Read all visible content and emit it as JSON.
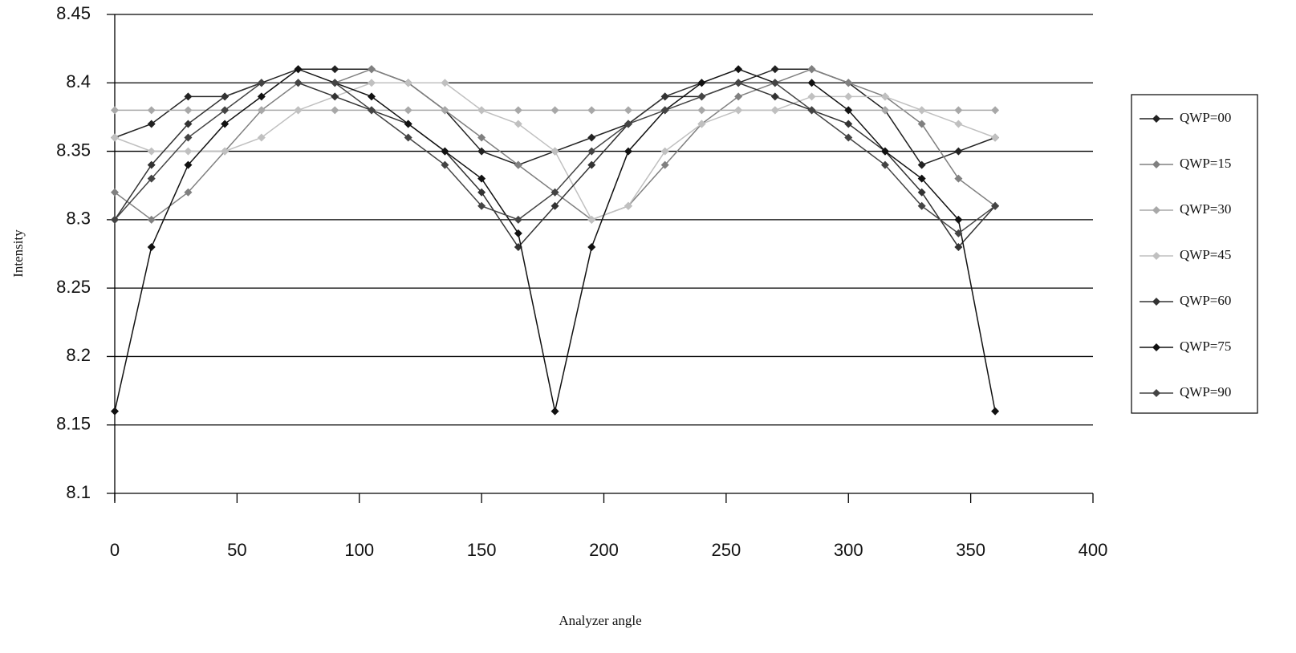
{
  "chart_data": {
    "type": "line",
    "x_label": "Analyzer angle",
    "y_label": "Intensity",
    "x": [
      0,
      15,
      30,
      45,
      60,
      75,
      90,
      105,
      120,
      135,
      150,
      165,
      180,
      195,
      210,
      225,
      240,
      255,
      270,
      285,
      300,
      315,
      330,
      345,
      360
    ],
    "xlim": [
      0,
      400
    ],
    "xticks": [
      0,
      50,
      100,
      150,
      200,
      250,
      300,
      350,
      400
    ],
    "ylim": [
      8.1,
      8.45
    ],
    "yticks": [
      8.1,
      8.15,
      8.2,
      8.25,
      8.3,
      8.35,
      8.4,
      8.45
    ],
    "grid": true,
    "legend": "right",
    "series": [
      {
        "name": "QWP=00",
        "color": "#222222",
        "values": [
          8.36,
          8.37,
          8.39,
          8.39,
          8.4,
          8.41,
          8.41,
          8.41,
          8.4,
          8.38,
          8.35,
          8.34,
          8.35,
          8.36,
          8.37,
          8.39,
          8.39,
          8.4,
          8.41,
          8.41,
          8.4,
          8.38,
          8.34,
          8.35,
          8.36
        ]
      },
      {
        "name": "QWP=15",
        "color": "#808080",
        "values": [
          8.32,
          8.3,
          8.32,
          8.35,
          8.38,
          8.4,
          8.4,
          8.41,
          8.4,
          8.38,
          8.36,
          8.34,
          8.32,
          8.3,
          8.31,
          8.34,
          8.37,
          8.39,
          8.4,
          8.41,
          8.4,
          8.39,
          8.37,
          8.33,
          8.31
        ]
      },
      {
        "name": "QWP=30",
        "color": "#a8a8a8",
        "values": [
          8.38,
          8.38,
          8.38,
          8.38,
          8.38,
          8.38,
          8.38,
          8.38,
          8.38,
          8.38,
          8.38,
          8.38,
          8.38,
          8.38,
          8.38,
          8.38,
          8.38,
          8.38,
          8.38,
          8.38,
          8.38,
          8.38,
          8.38,
          8.38,
          8.38
        ]
      },
      {
        "name": "QWP=45",
        "color": "#c0c0c0",
        "values": [
          8.36,
          8.35,
          8.35,
          8.35,
          8.36,
          8.38,
          8.39,
          8.4,
          8.4,
          8.4,
          8.38,
          8.37,
          8.35,
          8.3,
          8.31,
          8.35,
          8.37,
          8.38,
          8.38,
          8.39,
          8.39,
          8.39,
          8.38,
          8.37,
          8.36
        ]
      },
      {
        "name": "QWP=60",
        "color": "#333333",
        "values": [
          8.3,
          8.34,
          8.37,
          8.39,
          8.4,
          8.4,
          8.39,
          8.38,
          8.37,
          8.35,
          8.32,
          8.28,
          8.31,
          8.34,
          8.37,
          8.39,
          8.4,
          8.4,
          8.39,
          8.38,
          8.37,
          8.35,
          8.32,
          8.28,
          8.31
        ]
      },
      {
        "name": "QWP=75",
        "color": "#111111",
        "values": [
          8.16,
          8.28,
          8.34,
          8.37,
          8.39,
          8.41,
          8.4,
          8.39,
          8.37,
          8.35,
          8.33,
          8.29,
          8.16,
          8.28,
          8.35,
          8.38,
          8.4,
          8.41,
          8.4,
          8.4,
          8.38,
          8.35,
          8.33,
          8.3,
          8.16
        ]
      },
      {
        "name": "QWP=90",
        "color": "#444444",
        "values": [
          8.3,
          8.33,
          8.36,
          8.38,
          8.4,
          8.4,
          8.4,
          8.38,
          8.36,
          8.34,
          8.31,
          8.3,
          8.32,
          8.35,
          8.37,
          8.38,
          8.39,
          8.4,
          8.4,
          8.38,
          8.36,
          8.34,
          8.31,
          8.29,
          8.31
        ]
      }
    ]
  }
}
